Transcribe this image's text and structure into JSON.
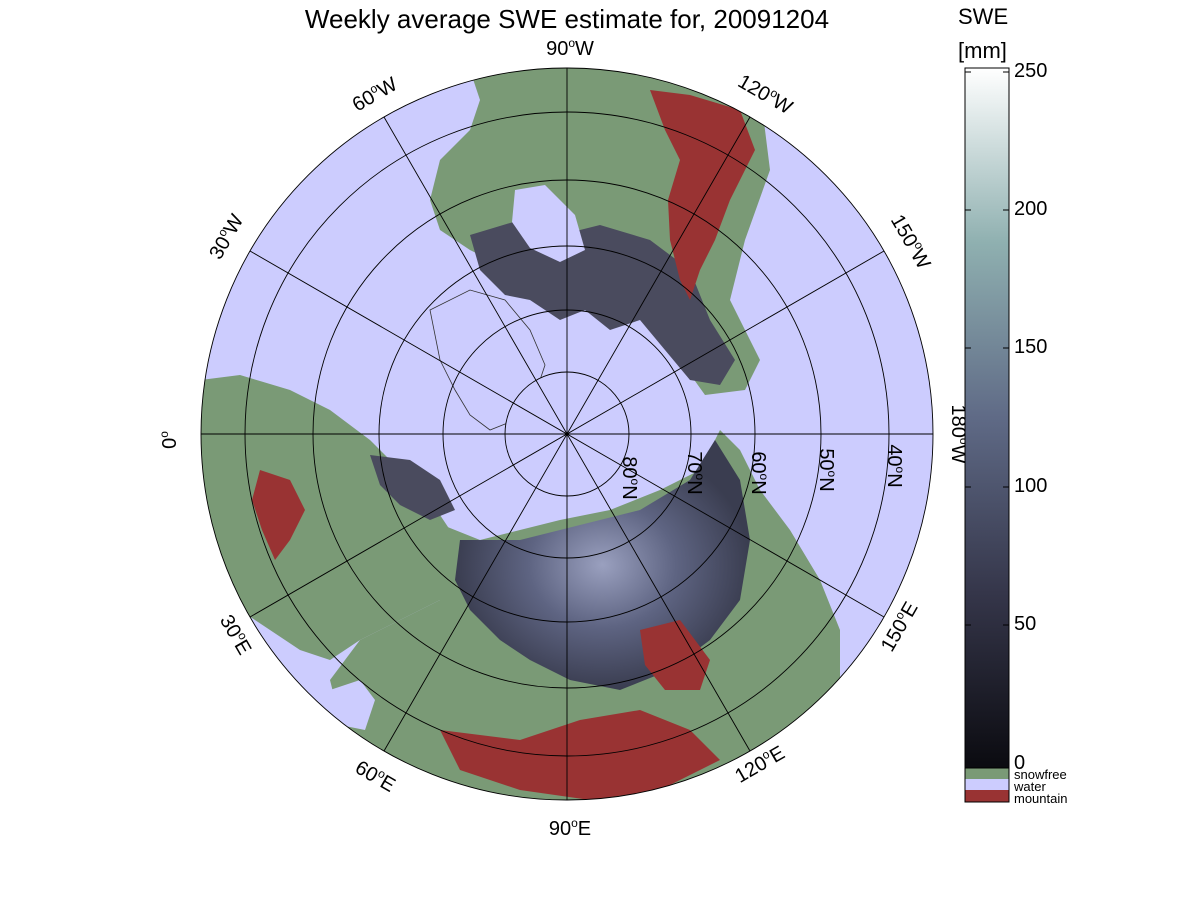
{
  "title": "Weekly average SWE estimate for, 20091204",
  "colorbar": {
    "label_line1": "SWE",
    "label_line2": "[mm]",
    "ticks": [
      "0",
      "50",
      "100",
      "150",
      "200",
      "250"
    ],
    "range": [
      0,
      250
    ],
    "colors": {
      "low": "#0b0b10",
      "mid": "#5f6a86",
      "high": "#ffffff"
    }
  },
  "categories": [
    {
      "label": "snowfree",
      "color": "#7a9a76"
    },
    {
      "label": "water",
      "color": "#ccccfe"
    },
    {
      "label": "mountain",
      "color": "#993333"
    }
  ],
  "map": {
    "projection": "north-polar-stereographic",
    "ocean_color": "#ccccfe",
    "land_snowfree_color": "#7a9a76",
    "mountain_color": "#993333",
    "longitude_labels": [
      {
        "text": "90",
        "suffix": "W"
      },
      {
        "text": "120",
        "suffix": "W"
      },
      {
        "text": "150",
        "suffix": "W"
      },
      {
        "text": "180",
        "suffix": "W"
      },
      {
        "text": "150",
        "suffix": "E"
      },
      {
        "text": "120",
        "suffix": "E"
      },
      {
        "text": "90",
        "suffix": "E"
      },
      {
        "text": "60",
        "suffix": "E"
      },
      {
        "text": "30",
        "suffix": "E"
      },
      {
        "text": "0",
        "suffix": ""
      },
      {
        "text": "30",
        "suffix": "W"
      },
      {
        "text": "60",
        "suffix": "W"
      }
    ],
    "latitude_labels": [
      {
        "text": "80",
        "suffix": "N"
      },
      {
        "text": "70",
        "suffix": "N"
      },
      {
        "text": "60",
        "suffix": "N"
      },
      {
        "text": "50",
        "suffix": "N"
      },
      {
        "text": "40",
        "suffix": "N"
      }
    ]
  }
}
